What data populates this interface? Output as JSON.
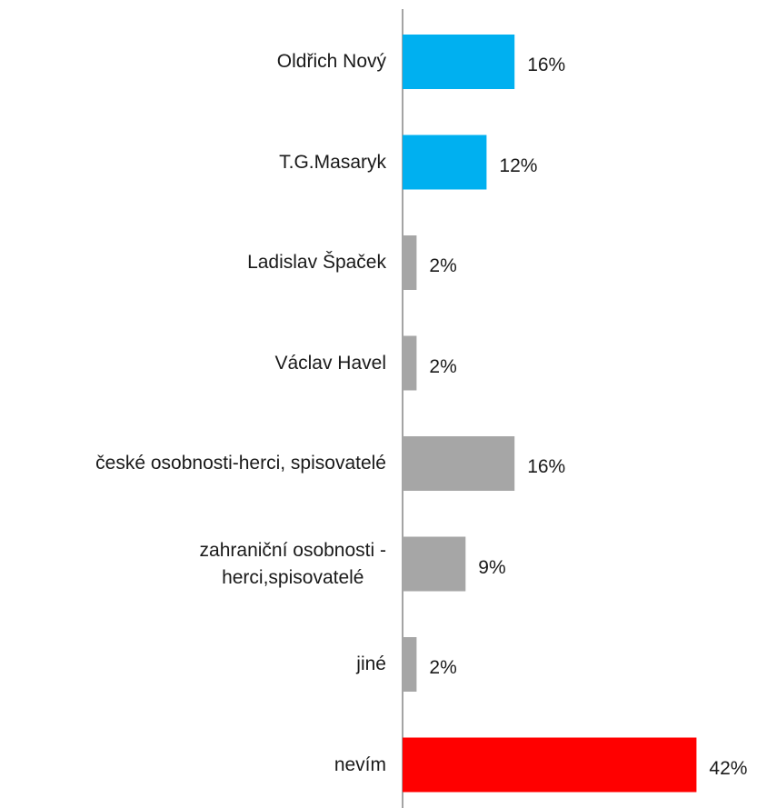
{
  "chart_data": {
    "type": "bar",
    "orientation": "horizontal",
    "categories": [
      "Oldřich Nový",
      "T.G.Masaryk",
      "Ladislav Špaček",
      "Václav Havel",
      "české osobnosti-herci, spisovatelé",
      "zahraniční osobnosti -\nherci,spisovatelé",
      "jiné",
      "nevím"
    ],
    "values": [
      16,
      12,
      2,
      2,
      16,
      9,
      2,
      42
    ],
    "value_labels": [
      "16%",
      "12%",
      "2%",
      "2%",
      "16%",
      "9%",
      "2%",
      "42%"
    ],
    "colors": [
      "#00b0f0",
      "#00b0f0",
      "#a6a6a6",
      "#a6a6a6",
      "#a6a6a6",
      "#a6a6a6",
      "#a6a6a6",
      "#ff0000"
    ]
  }
}
